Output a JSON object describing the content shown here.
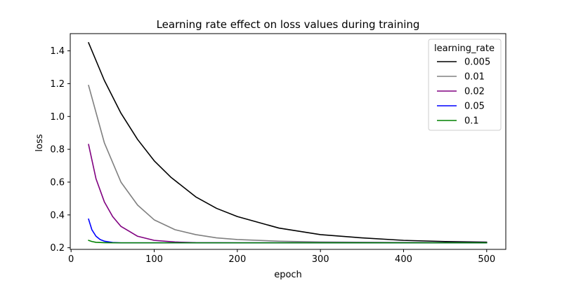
{
  "chart_data": {
    "type": "line",
    "title": "Learning rate effect on loss values during training",
    "xlabel": "epoch",
    "ylabel": "loss",
    "xlim": [
      -1,
      523
    ],
    "ylim": [
      0.19,
      1.505
    ],
    "x_ticks": [
      0,
      100,
      200,
      300,
      400,
      500
    ],
    "y_ticks": [
      0.2,
      0.4,
      0.6,
      0.8,
      1.0,
      1.2,
      1.4
    ],
    "x_tick_labels": [
      "0",
      "100",
      "200",
      "300",
      "400",
      "500"
    ],
    "y_tick_labels": [
      "0.2",
      "0.4",
      "0.6",
      "0.8",
      "1.0",
      "1.2",
      "1.4"
    ],
    "grid": false,
    "legend": {
      "title": "learning_rate",
      "placement": "top-right"
    },
    "series": [
      {
        "name": "0.005",
        "color": "#000000",
        "x": [
          21,
          40,
          60,
          80,
          100,
          120,
          150,
          175,
          200,
          250,
          300,
          350,
          400,
          450,
          500
        ],
        "y": [
          1.45,
          1.22,
          1.02,
          0.86,
          0.73,
          0.63,
          0.51,
          0.44,
          0.39,
          0.32,
          0.28,
          0.26,
          0.245,
          0.238,
          0.234
        ]
      },
      {
        "name": "0.01",
        "color": "#808080",
        "x": [
          21,
          40,
          60,
          80,
          100,
          125,
          150,
          175,
          200,
          250,
          300,
          400,
          500
        ],
        "y": [
          1.19,
          0.84,
          0.6,
          0.46,
          0.37,
          0.31,
          0.28,
          0.26,
          0.25,
          0.24,
          0.235,
          0.232,
          0.231
        ]
      },
      {
        "name": "0.02",
        "color": "#800080",
        "x": [
          21,
          30,
          40,
          50,
          60,
          70,
          80,
          100,
          125,
          150,
          200,
          300,
          500
        ],
        "y": [
          0.83,
          0.62,
          0.48,
          0.39,
          0.33,
          0.3,
          0.27,
          0.245,
          0.235,
          0.231,
          0.23,
          0.23,
          0.23
        ]
      },
      {
        "name": "0.05",
        "color": "#0000ff",
        "x": [
          21,
          25,
          30,
          35,
          40,
          50,
          60,
          80,
          100,
          200,
          500
        ],
        "y": [
          0.375,
          0.31,
          0.27,
          0.25,
          0.24,
          0.232,
          0.23,
          0.23,
          0.23,
          0.23,
          0.23
        ]
      },
      {
        "name": "0.1",
        "color": "#008000",
        "x": [
          21,
          25,
          30,
          40,
          50,
          100,
          200,
          500
        ],
        "y": [
          0.245,
          0.238,
          0.233,
          0.231,
          0.23,
          0.23,
          0.23,
          0.23
        ]
      }
    ]
  }
}
